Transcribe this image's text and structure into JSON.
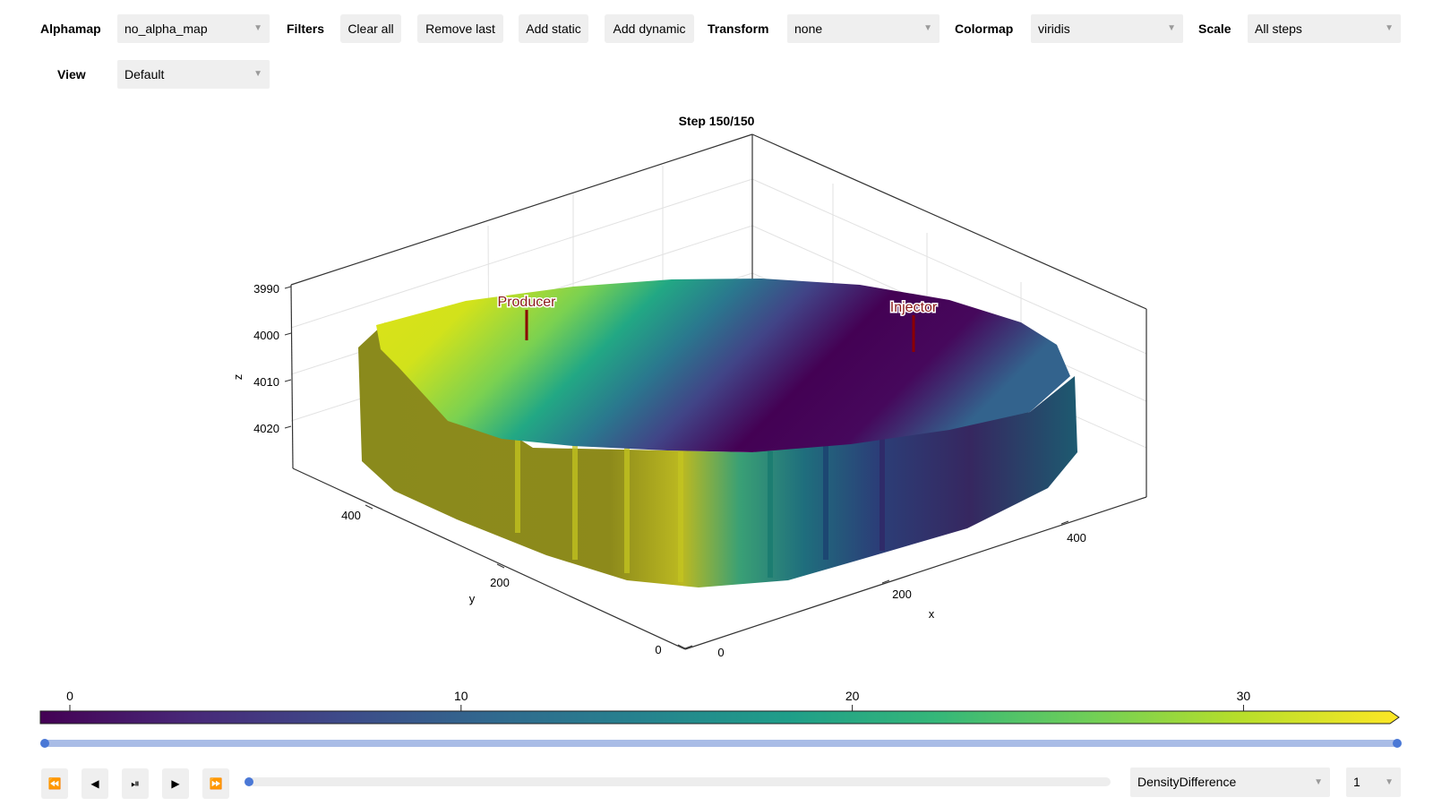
{
  "toolbar": {
    "alphamap_label": "Alphamap",
    "alphamap_value": "no_alpha_map",
    "filters_label": "Filters",
    "clear_all": "Clear all",
    "remove_last": "Remove last",
    "add_static": "Add static",
    "add_dynamic": "Add dynamic",
    "transform_label": "Transform",
    "transform_value": "none",
    "colormap_label": "Colormap",
    "colormap_value": "viridis",
    "scale_label": "Scale",
    "scale_value": "All steps",
    "view_label": "View",
    "view_value": "Default"
  },
  "plot": {
    "title": "Step 150/150",
    "z_axis_label": "z",
    "x_axis_label": "x",
    "y_axis_label": "y",
    "z_ticks": [
      "3990",
      "4000",
      "4010",
      "4020"
    ],
    "x_ticks": [
      "0",
      "200",
      "400"
    ],
    "y_ticks": [
      "0",
      "200",
      "400"
    ],
    "wells": [
      {
        "name": "Producer",
        "color": "#8b0000"
      },
      {
        "name": "Injector",
        "color": "#8b0000"
      }
    ],
    "colormap": "viridis",
    "grid": true
  },
  "colorbar": {
    "ticks": [
      "0",
      "10",
      "20",
      "30"
    ],
    "range": [
      0,
      34.5
    ]
  },
  "range_slider": {
    "low": 0,
    "high": 1
  },
  "playback": {
    "rewind_icon": "⏪",
    "back_icon": "◀",
    "playpause_icon": "⏯",
    "play_icon": "▶",
    "forward_icon": "⏩",
    "step_slider": 0,
    "property_value": "DensityDifference",
    "component_value": "1"
  }
}
